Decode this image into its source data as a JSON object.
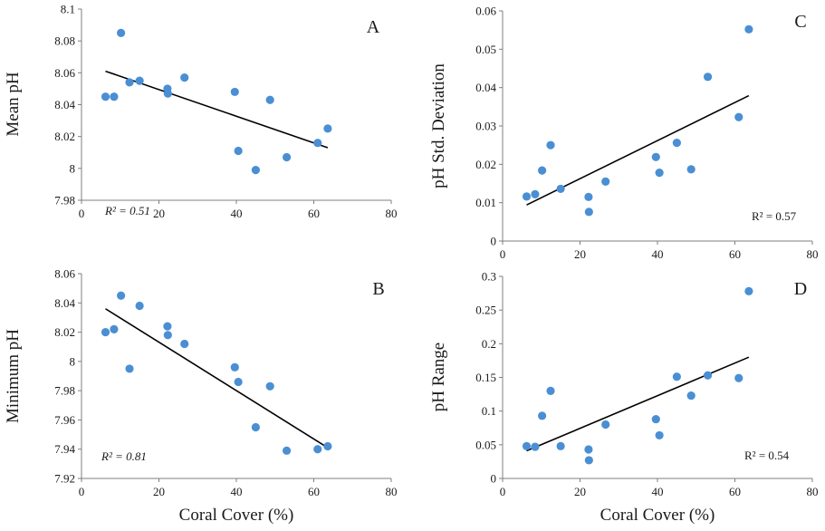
{
  "figure": {
    "shared_xlabel": "Coral Cover (%)"
  },
  "chart_data": [
    {
      "type": "scatter",
      "panel": "A",
      "xlabel": "",
      "ylabel": "Mean pH",
      "xlim": [
        0,
        80
      ],
      "ylim": [
        7.98,
        8.1
      ],
      "xticks": [
        "0",
        "20",
        "40",
        "60",
        "80"
      ],
      "yticks": [
        "7.98",
        "8",
        "8.02",
        "8.04",
        "8.06",
        "8.08",
        "8.1"
      ],
      "r2_label": "R² = 0.51",
      "point_color": "#4a8fd4",
      "x": [
        6.2,
        8.4,
        10.2,
        12.4,
        15.0,
        22.2,
        22.3,
        26.6,
        39.6,
        40.5,
        45.0,
        48.7,
        53.0,
        61.0,
        63.6
      ],
      "y": [
        8.045,
        8.045,
        8.085,
        8.054,
        8.055,
        8.05,
        8.047,
        8.057,
        8.048,
        8.011,
        7.999,
        8.043,
        8.007,
        8.016,
        8.025
      ],
      "trendline": {
        "x": [
          6.2,
          63.6
        ],
        "y": [
          8.061,
          8.013
        ]
      }
    },
    {
      "type": "scatter",
      "panel": "C",
      "xlabel": "",
      "ylabel": "pH Std. Deviation",
      "xlim": [
        0,
        80
      ],
      "ylim": [
        0,
        0.06
      ],
      "xticks": [
        "0",
        "20",
        "40",
        "60",
        "80"
      ],
      "yticks": [
        "0",
        "0.01",
        "0.02",
        "0.03",
        "0.04",
        "0.05",
        "0.06"
      ],
      "r2_label": "R² = 0.57",
      "point_color": "#4a8fd4",
      "x": [
        6.2,
        8.4,
        10.2,
        12.4,
        15.0,
        22.2,
        22.3,
        26.6,
        39.6,
        40.5,
        45.0,
        48.7,
        53.0,
        61.0,
        63.6
      ],
      "y": [
        0.0116,
        0.0122,
        0.0184,
        0.025,
        0.0136,
        0.0115,
        0.0076,
        0.0155,
        0.0219,
        0.0178,
        0.0256,
        0.0187,
        0.0428,
        0.0323,
        0.0552
      ],
      "trendline": {
        "x": [
          6.2,
          63.6
        ],
        "y": [
          0.0094,
          0.0379
        ]
      }
    },
    {
      "type": "scatter",
      "panel": "B",
      "xlabel": "Coral Cover (%)",
      "ylabel": "Minimum pH",
      "xlim": [
        0,
        80
      ],
      "ylim": [
        7.92,
        8.06
      ],
      "xticks": [
        "0",
        "20",
        "40",
        "60",
        "80"
      ],
      "yticks": [
        "7.92",
        "7.94",
        "7.96",
        "7.98",
        "8",
        "8.02",
        "8.04",
        "8.06"
      ],
      "r2_label": "R² = 0.81",
      "point_color": "#4a8fd4",
      "x": [
        6.2,
        8.4,
        10.2,
        12.4,
        15.0,
        22.2,
        22.3,
        26.6,
        39.6,
        40.5,
        45.0,
        48.7,
        53.0,
        61.0,
        63.6
      ],
      "y": [
        8.02,
        8.022,
        8.045,
        7.995,
        8.038,
        8.024,
        8.018,
        8.012,
        7.996,
        7.986,
        7.955,
        7.983,
        7.939,
        7.94,
        7.942
      ],
      "trendline": {
        "x": [
          6.2,
          63.6
        ],
        "y": [
          8.036,
          7.941
        ]
      }
    },
    {
      "type": "scatter",
      "panel": "D",
      "xlabel": "Coral Cover (%)",
      "ylabel": "pH Range",
      "xlim": [
        0,
        80
      ],
      "ylim": [
        0,
        0.3
      ],
      "xticks": [
        "0",
        "20",
        "40",
        "60",
        "80"
      ],
      "yticks": [
        "0",
        "0.05",
        "0.1",
        "0.15",
        "0.2",
        "0.25",
        "0.3"
      ],
      "r2_label": "R² = 0.54",
      "point_color": "#4a8fd4",
      "x": [
        6.2,
        8.4,
        10.2,
        12.4,
        15.0,
        22.2,
        22.3,
        26.6,
        39.6,
        40.5,
        45.0,
        48.7,
        53.0,
        61.0,
        63.6
      ],
      "y": [
        0.048,
        0.047,
        0.093,
        0.13,
        0.048,
        0.043,
        0.027,
        0.08,
        0.088,
        0.064,
        0.151,
        0.123,
        0.153,
        0.149,
        0.278
      ],
      "trendline": {
        "x": [
          6.2,
          63.6
        ],
        "y": [
          0.041,
          0.18
        ]
      }
    }
  ]
}
